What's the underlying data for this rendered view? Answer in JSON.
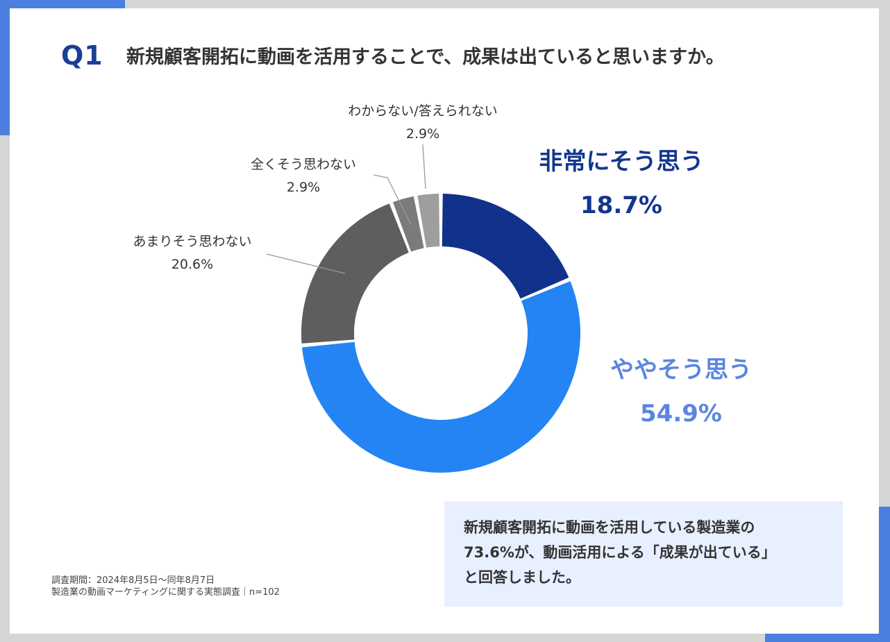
{
  "header": {
    "q_label": "Q1",
    "title": "新規顧客開拓に動画を活用することで、成果は出ていると思いますか。"
  },
  "chart_data": {
    "type": "pie",
    "variant": "donut",
    "title": "新規顧客開拓に動画を活用することで、成果は出ていると思いますか。",
    "slices": [
      {
        "label": "非常にそう思う",
        "value": 18.7,
        "display": "18.7%",
        "color": "#12318a"
      },
      {
        "label": "ややそう思う",
        "value": 54.9,
        "display": "54.9%",
        "color": "#2484f3"
      },
      {
        "label": "あまりそう思わない",
        "value": 20.6,
        "display": "20.6%",
        "color": "#5e5e5e"
      },
      {
        "label": "全くそう思わない",
        "value": 2.9,
        "display": "2.9%",
        "color": "#7b7b7b"
      },
      {
        "label": "わからない/答えられない",
        "value": 2.9,
        "display": "2.9%",
        "color": "#9e9e9e"
      }
    ]
  },
  "summary": {
    "line1": "新規顧客開拓に動画を活用している製造業の",
    "line2": "73.6%が、動画活用による「成果が出ている」",
    "line3": "と回答しました。"
  },
  "footnote": {
    "line1": "調査期間：2024年8月5日〜同年8月7日",
    "line2": "製造業の動画マーケティングに関する実態調査｜n=102"
  },
  "colors": {
    "accent": "#4a7fe0",
    "title_blue": "#1b3f97",
    "summary_bg": "#e8efff"
  }
}
